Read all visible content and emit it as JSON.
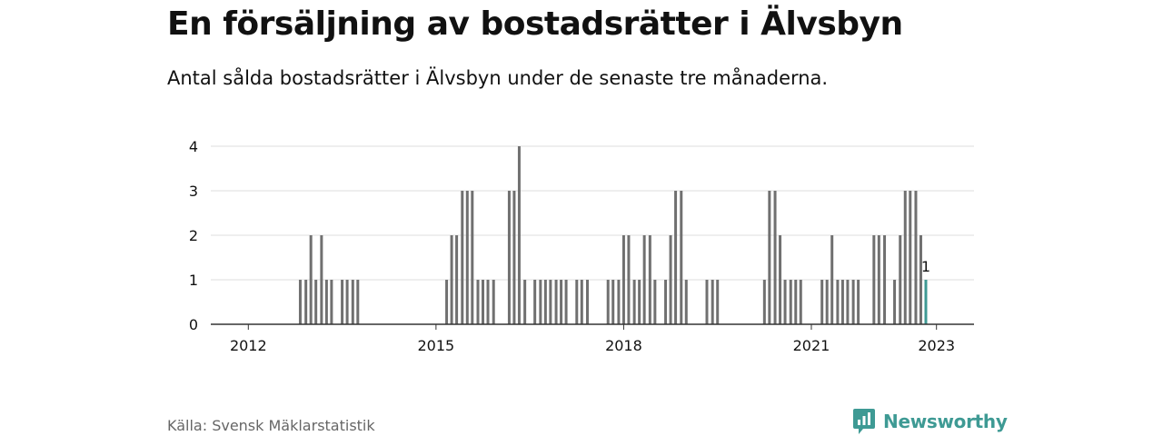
{
  "title": "En försäljning av bostadsrätter i Älvsbyn",
  "subtitle": "Antal sålda bostadsrätter i Älvsbyn under de senaste tre månaderna.",
  "source": "Källa: Svensk Mäklarstatistik",
  "brand": "Newsworthy",
  "colors": {
    "bar": "#707070",
    "highlight": "#3e9a94",
    "grid": "#dddddd",
    "axis": "#333333",
    "text": "#111111"
  },
  "chart_data": {
    "type": "bar",
    "title": "En försäljning av bostadsrätter i Älvsbyn",
    "xlabel": "",
    "ylabel": "",
    "ylim": [
      0,
      4
    ],
    "yticks": [
      0,
      1,
      2,
      3,
      4
    ],
    "xticks": [
      {
        "label": "2012",
        "x": 2012.0
      },
      {
        "label": "2015",
        "x": 2015.0
      },
      {
        "label": "2018",
        "x": 2018.0
      },
      {
        "label": "2021",
        "x": 2021.0
      },
      {
        "label": "2023",
        "x": 2023.0
      }
    ],
    "xlim": [
      2011.4,
      2023.6
    ],
    "series": [
      {
        "name": "Sålda bostadsrätter",
        "points": [
          {
            "x": 2012.83,
            "v": 1
          },
          {
            "x": 2012.92,
            "v": 1
          },
          {
            "x": 2013.0,
            "v": 2
          },
          {
            "x": 2013.08,
            "v": 1
          },
          {
            "x": 2013.17,
            "v": 2
          },
          {
            "x": 2013.25,
            "v": 1
          },
          {
            "x": 2013.33,
            "v": 1
          },
          {
            "x": 2013.5,
            "v": 1
          },
          {
            "x": 2013.58,
            "v": 1
          },
          {
            "x": 2013.67,
            "v": 1
          },
          {
            "x": 2013.75,
            "v": 1
          },
          {
            "x": 2015.17,
            "v": 1
          },
          {
            "x": 2015.25,
            "v": 2
          },
          {
            "x": 2015.33,
            "v": 2
          },
          {
            "x": 2015.42,
            "v": 3
          },
          {
            "x": 2015.5,
            "v": 3
          },
          {
            "x": 2015.58,
            "v": 3
          },
          {
            "x": 2015.67,
            "v": 1
          },
          {
            "x": 2015.75,
            "v": 1
          },
          {
            "x": 2015.83,
            "v": 1
          },
          {
            "x": 2015.92,
            "v": 1
          },
          {
            "x": 2016.17,
            "v": 3
          },
          {
            "x": 2016.25,
            "v": 3
          },
          {
            "x": 2016.33,
            "v": 4
          },
          {
            "x": 2016.42,
            "v": 1
          },
          {
            "x": 2016.58,
            "v": 1
          },
          {
            "x": 2016.67,
            "v": 1
          },
          {
            "x": 2016.75,
            "v": 1
          },
          {
            "x": 2016.83,
            "v": 1
          },
          {
            "x": 2016.92,
            "v": 1
          },
          {
            "x": 2017.0,
            "v": 1
          },
          {
            "x": 2017.08,
            "v": 1
          },
          {
            "x": 2017.25,
            "v": 1
          },
          {
            "x": 2017.33,
            "v": 1
          },
          {
            "x": 2017.42,
            "v": 1
          },
          {
            "x": 2017.75,
            "v": 1
          },
          {
            "x": 2017.83,
            "v": 1
          },
          {
            "x": 2017.92,
            "v": 1
          },
          {
            "x": 2018.0,
            "v": 2
          },
          {
            "x": 2018.08,
            "v": 2
          },
          {
            "x": 2018.17,
            "v": 1
          },
          {
            "x": 2018.25,
            "v": 1
          },
          {
            "x": 2018.33,
            "v": 2
          },
          {
            "x": 2018.42,
            "v": 2
          },
          {
            "x": 2018.5,
            "v": 1
          },
          {
            "x": 2018.67,
            "v": 1
          },
          {
            "x": 2018.75,
            "v": 2
          },
          {
            "x": 2018.83,
            "v": 3
          },
          {
            "x": 2018.92,
            "v": 3
          },
          {
            "x": 2019.0,
            "v": 1
          },
          {
            "x": 2019.33,
            "v": 1
          },
          {
            "x": 2019.42,
            "v": 1
          },
          {
            "x": 2019.5,
            "v": 1
          },
          {
            "x": 2020.25,
            "v": 1
          },
          {
            "x": 2020.33,
            "v": 3
          },
          {
            "x": 2020.42,
            "v": 3
          },
          {
            "x": 2020.5,
            "v": 2
          },
          {
            "x": 2020.58,
            "v": 1
          },
          {
            "x": 2020.67,
            "v": 1
          },
          {
            "x": 2020.75,
            "v": 1
          },
          {
            "x": 2020.83,
            "v": 1
          },
          {
            "x": 2021.17,
            "v": 1
          },
          {
            "x": 2021.25,
            "v": 1
          },
          {
            "x": 2021.33,
            "v": 2
          },
          {
            "x": 2021.42,
            "v": 1
          },
          {
            "x": 2021.5,
            "v": 1
          },
          {
            "x": 2021.58,
            "v": 1
          },
          {
            "x": 2021.67,
            "v": 1
          },
          {
            "x": 2021.75,
            "v": 1
          },
          {
            "x": 2022.0,
            "v": 2
          },
          {
            "x": 2022.08,
            "v": 2
          },
          {
            "x": 2022.17,
            "v": 2
          },
          {
            "x": 2022.33,
            "v": 1
          },
          {
            "x": 2022.42,
            "v": 2
          },
          {
            "x": 2022.5,
            "v": 3
          },
          {
            "x": 2022.58,
            "v": 3
          },
          {
            "x": 2022.67,
            "v": 3
          },
          {
            "x": 2022.75,
            "v": 2
          }
        ]
      }
    ],
    "highlight": {
      "x": 2022.83,
      "v": 1,
      "label": "1"
    }
  }
}
